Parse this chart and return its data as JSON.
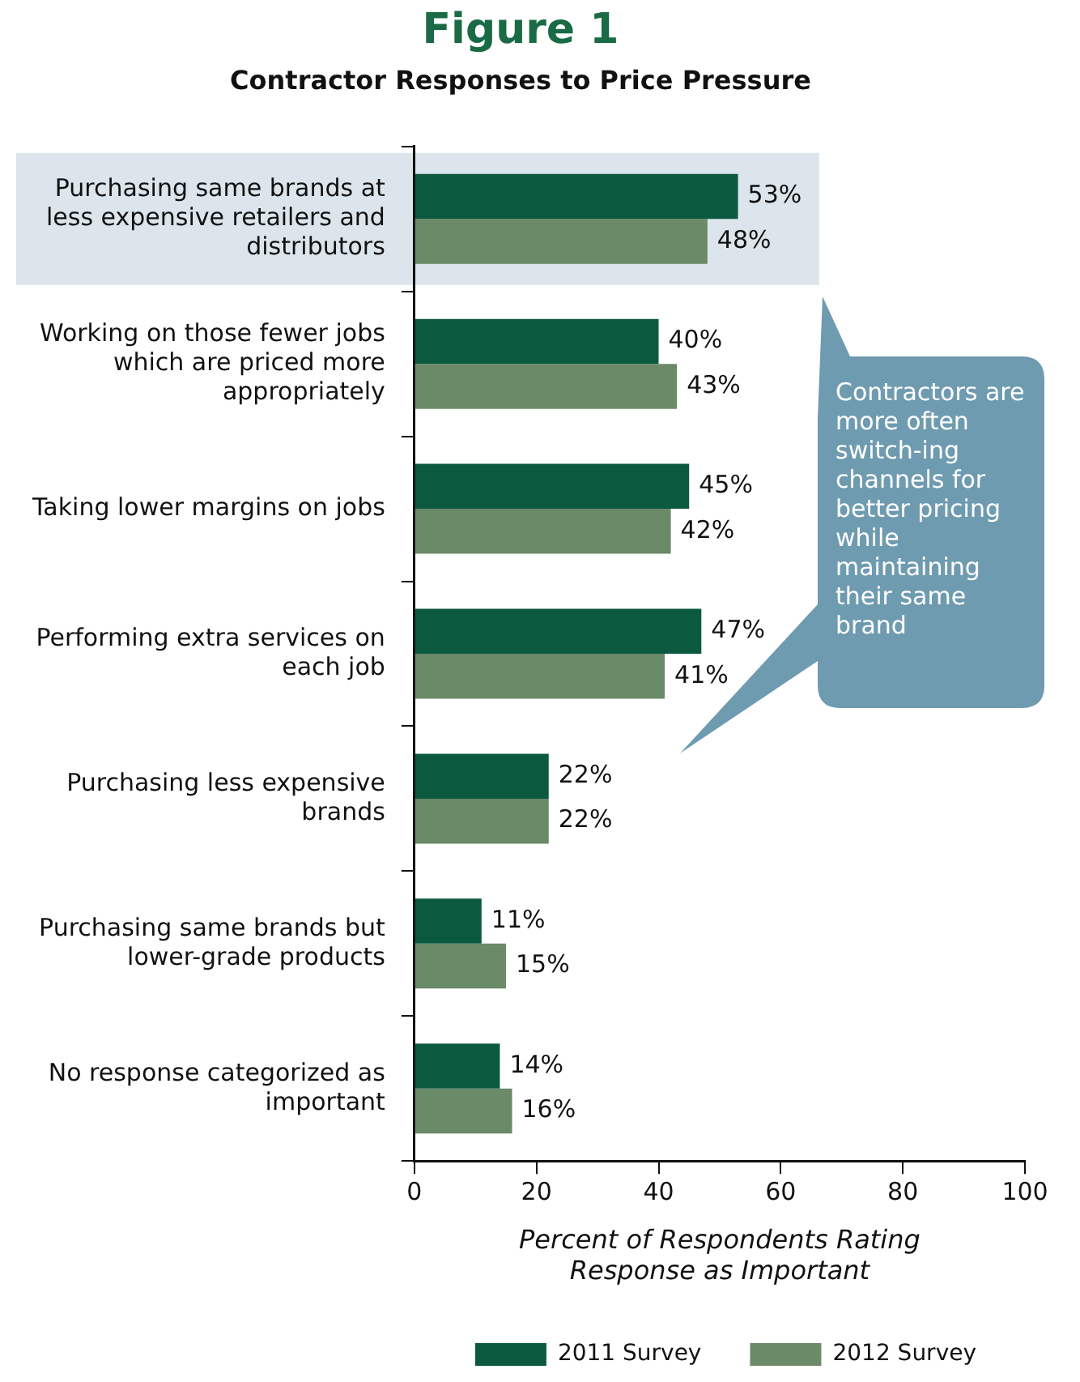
{
  "chart_data": {
    "type": "bar",
    "orientation": "horizontal",
    "title": "Figure 1",
    "subtitle": "Contractor Responses to Price Pressure",
    "categories": [
      "Purchasing same brands at less expensive retailers and distributors",
      "Working on those fewer jobs which are priced more appropriately",
      "Taking lower margins on jobs",
      "Performing extra services on each job",
      "Purchasing less expensive brands",
      "Purchasing same brands but lower-grade products",
      "No response categorized as important"
    ],
    "series": [
      {
        "name": "2011 Survey",
        "color": "#0b5a40",
        "values": [
          53,
          40,
          45,
          47,
          22,
          11,
          14
        ],
        "value_labels": [
          "53%",
          "40%",
          "45%",
          "47%",
          "22%",
          "11%",
          "14%"
        ]
      },
      {
        "name": "2012 Survey",
        "color": "#6b8a68",
        "values": [
          48,
          43,
          42,
          41,
          22,
          15,
          16
        ],
        "value_labels": [
          "48%",
          "43%",
          "42%",
          "41%",
          "22%",
          "15%",
          "16%"
        ]
      }
    ],
    "xlabel": "Percent of Respondents Rating Response as Important",
    "xlim": [
      0,
      100
    ],
    "xticks": [
      0,
      20,
      40,
      60,
      80,
      100
    ],
    "grid": false,
    "legend": "bottom",
    "bands": [
      {
        "axis": "y",
        "from": "Purchasing same brands at less expensive retailers and distributors",
        "to": "Purchasing same brands at less expensive retailers and distributors",
        "color": "#dbe5eb"
      }
    ],
    "annotations": [
      "Contractors are more often switch-ing channels for better pricing while maintaining their same brand"
    ]
  }
}
